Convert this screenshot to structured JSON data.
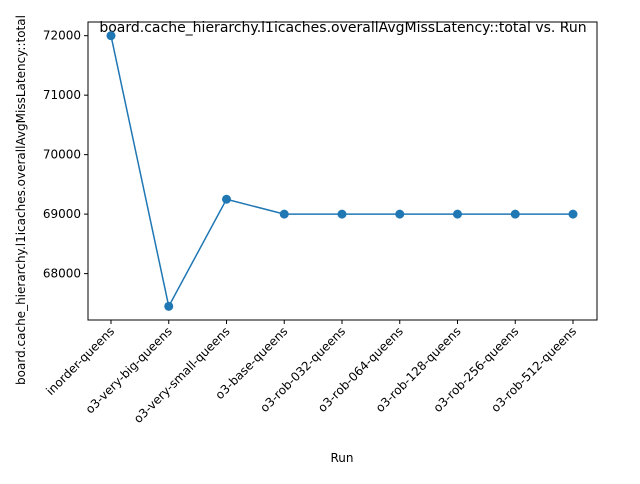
{
  "chart_data": {
    "type": "line",
    "title": "board.cache_hierarchy.l1icaches.overallAvgMissLatency::total vs. Run",
    "xlabel": "Run",
    "ylabel": "board.cache_hierarchy.l1icaches.overallAvgMissLatency::total",
    "categories": [
      "inorder-queens",
      "o3-very-big-queens",
      "o3-very-small-queens",
      "o3-base-queens",
      "o3-rob-032-queens",
      "o3-rob-064-queens",
      "o3-rob-128-queens",
      "o3-rob-256-queens",
      "o3-rob-512-queens"
    ],
    "series": [
      {
        "values": [
          72000,
          67450,
          69250,
          69000,
          69000,
          69000,
          69000,
          69000,
          69000
        ],
        "color": "#1f77b4"
      }
    ],
    "yticks": [
      68000,
      69000,
      70000,
      71000,
      72000
    ],
    "ylim": [
      67220,
      72230
    ],
    "grid": false,
    "legend": "none"
  }
}
